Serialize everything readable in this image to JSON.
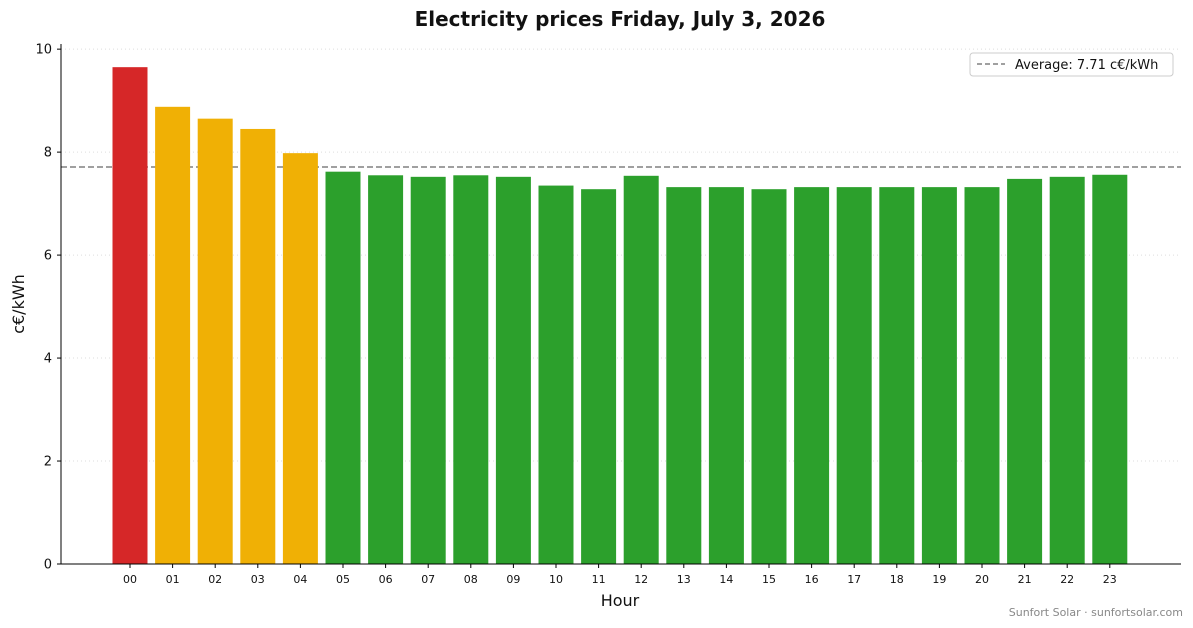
{
  "chart_data": {
    "type": "bar",
    "title": "Electricity prices Friday, July 3, 2026",
    "xlabel": "Hour",
    "ylabel": "c€/kWh",
    "ylim": [
      0,
      10.1
    ],
    "yticks": [
      "0",
      "2",
      "4",
      "6",
      "8",
      "10"
    ],
    "categories": [
      "00",
      "01",
      "02",
      "03",
      "04",
      "05",
      "06",
      "07",
      "08",
      "09",
      "10",
      "11",
      "12",
      "13",
      "14",
      "15",
      "16",
      "17",
      "18",
      "19",
      "20",
      "21",
      "22",
      "23"
    ],
    "values": [
      9.65,
      8.88,
      8.65,
      8.45,
      7.98,
      7.62,
      7.55,
      7.52,
      7.55,
      7.52,
      7.35,
      7.28,
      7.54,
      7.32,
      7.32,
      7.28,
      7.32,
      7.32,
      7.32,
      7.32,
      7.32,
      7.48,
      7.52,
      7.56
    ],
    "bar_colors": [
      "#d62728",
      "#f0b005",
      "#f0b005",
      "#f0b005",
      "#f0b005",
      "#2ca02c",
      "#2ca02c",
      "#2ca02c",
      "#2ca02c",
      "#2ca02c",
      "#2ca02c",
      "#2ca02c",
      "#2ca02c",
      "#2ca02c",
      "#2ca02c",
      "#2ca02c",
      "#2ca02c",
      "#2ca02c",
      "#2ca02c",
      "#2ca02c",
      "#2ca02c",
      "#2ca02c",
      "#2ca02c",
      "#2ca02c"
    ],
    "average": 7.71,
    "average_color": "#808080",
    "legend": {
      "label": "Average: 7.71 c€/kWh",
      "position": "top-right"
    },
    "grid": {
      "y": true,
      "color": "#dddddd",
      "style": "dotted"
    }
  },
  "footer": "Sunfort Solar · sunfortsolar.com"
}
